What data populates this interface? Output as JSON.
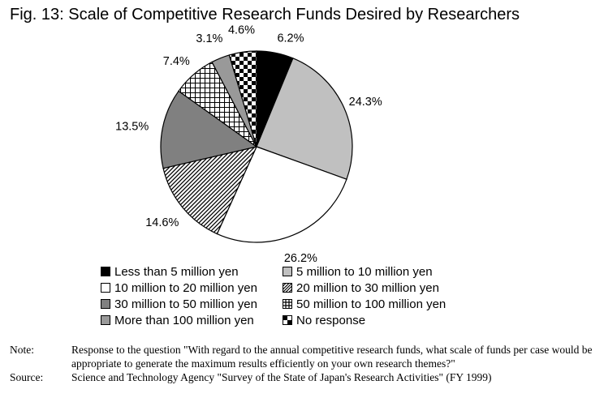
{
  "title": "Fig. 13: Scale of Competitive Research Funds Desired by Researchers",
  "chart_data": {
    "type": "pie",
    "title": "Fig. 13: Scale of Competitive Research Funds Desired by Researchers",
    "slices": [
      {
        "label": "Less than 5 million yen",
        "value": 6.2,
        "display": "6.2%",
        "pattern": "black"
      },
      {
        "label": "5 million to 10 million yen",
        "value": 24.3,
        "display": "24.3%",
        "pattern": "lightgray"
      },
      {
        "label": "10 million to 20 million yen",
        "value": 26.2,
        "display": "26.2%",
        "pattern": "white"
      },
      {
        "label": "20 million to 30 million yen",
        "value": 14.6,
        "display": "14.6%",
        "pattern": "diagonal-hatch"
      },
      {
        "label": "30 million to 50 million yen",
        "value": 13.5,
        "display": "13.5%",
        "pattern": "darkgray"
      },
      {
        "label": "50 million to 100 million yen",
        "value": 7.4,
        "display": "7.4%",
        "pattern": "grid"
      },
      {
        "label": "More than 100 million yen",
        "value": 3.1,
        "display": "3.1%",
        "pattern": "midgray"
      },
      {
        "label": "No response",
        "value": 4.6,
        "display": "4.6%",
        "pattern": "checker"
      }
    ],
    "start": "12 o'clock",
    "direction": "clockwise",
    "legend_placement": "bottom"
  },
  "colors": {
    "black": "#000000",
    "lightgray": "#c0c0c0",
    "white": "#ffffff",
    "darkgray": "#808080",
    "midgray": "#999999"
  },
  "note": {
    "label": "Note:",
    "text": "Response to the question \"With regard to the annual competitive research funds, what scale of funds per case would be appropriate to generate the maximum results efficiently on your own research themes?\""
  },
  "source": {
    "label": "Source:",
    "text": "Science and Technology Agency \"Survey of the State of Japan's Research Activities\" (FY 1999)"
  }
}
